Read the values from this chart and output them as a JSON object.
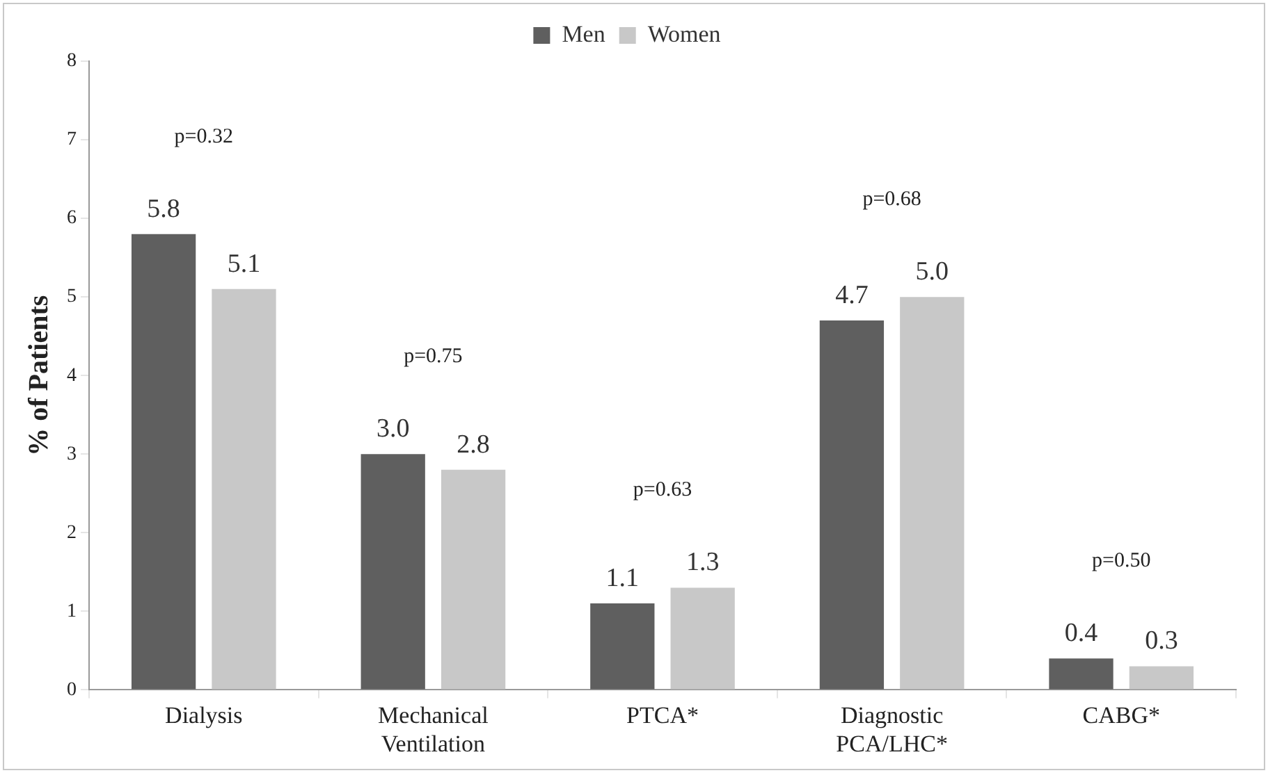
{
  "chart_data": {
    "type": "bar",
    "ylabel": "% of Patients",
    "categories": [
      "Dialysis",
      "Mechanical Ventilation",
      "PTCA*",
      "Diagnostic PCA/LHC*",
      "CABG*"
    ],
    "series": [
      {
        "name": "Men",
        "color": "#5f5f5f",
        "values": [
          5.8,
          3.0,
          1.1,
          4.7,
          0.4
        ],
        "value_labels": [
          "5.8",
          "3.0",
          "1.1",
          "4.7",
          "0.4"
        ]
      },
      {
        "name": "Women",
        "color": "#c8c8c8",
        "values": [
          5.1,
          2.8,
          1.3,
          5.0,
          0.3
        ],
        "value_labels": [
          "5.1",
          "2.8",
          "1.3",
          "5.0",
          "0.3"
        ]
      }
    ],
    "ylim": [
      0,
      8
    ],
    "yticks": [
      0,
      1,
      2,
      3,
      4,
      5,
      6,
      7,
      8
    ],
    "grid": false,
    "legend": "top",
    "annotations": [
      "p=0.32",
      "p=0.75",
      "p=0.63",
      "p=0.68",
      "p=0.50"
    ]
  }
}
